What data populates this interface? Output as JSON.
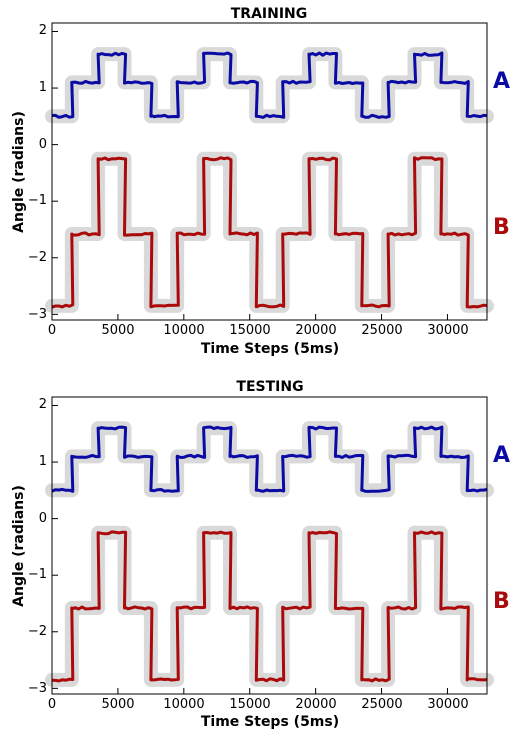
{
  "chart_data": [
    {
      "type": "line",
      "title": "TRAINING",
      "xlabel": "Time Steps (5ms)",
      "ylabel": "Angle (radians)",
      "xlim": [
        0,
        33000
      ],
      "ylim": [
        -3.1,
        2.15
      ],
      "x_ticks": [
        "0",
        "5000",
        "10000",
        "15000",
        "20000",
        "25000",
        "30000"
      ],
      "y_ticks": [
        "2",
        "1",
        "0",
        "−1",
        "−2",
        "−3"
      ],
      "labels": [
        "A",
        "B"
      ],
      "colors": {
        "A": "#0a0aa5",
        "B": "#aa0a0a",
        "target": "#d9d9d9"
      },
      "series": [
        {
          "name": "A",
          "x": [
            0,
            1500,
            1500,
            3500,
            3500,
            5500,
            5500,
            7500,
            7500,
            9500,
            9500,
            11500,
            11500,
            13500,
            13500,
            15500,
            15500,
            17500,
            17500,
            19500,
            19500,
            21500,
            21500,
            23500,
            23500,
            25500,
            25500,
            27500,
            27500,
            29500,
            29500,
            31500,
            31500,
            33000
          ],
          "y": [
            0.5,
            0.5,
            1.1,
            1.1,
            1.6,
            1.6,
            1.1,
            1.1,
            0.5,
            0.5,
            1.1,
            1.1,
            1.6,
            1.6,
            1.1,
            1.1,
            0.5,
            0.5,
            1.1,
            1.1,
            1.6,
            1.6,
            1.1,
            1.1,
            0.5,
            0.5,
            1.1,
            1.1,
            1.6,
            1.6,
            1.1,
            1.1,
            0.5,
            0.5
          ]
        },
        {
          "name": "B",
          "x": [
            0,
            1500,
            1500,
            3500,
            3500,
            5500,
            5500,
            7500,
            7500,
            9500,
            9500,
            11500,
            11500,
            13500,
            13500,
            15500,
            15500,
            17500,
            17500,
            19500,
            19500,
            21500,
            21500,
            23500,
            23500,
            25500,
            25500,
            27500,
            27500,
            29500,
            29500,
            31500,
            31500,
            33000
          ],
          "y": [
            -2.85,
            -2.85,
            -1.58,
            -1.58,
            -0.25,
            -0.25,
            -1.58,
            -1.58,
            -2.85,
            -2.85,
            -1.58,
            -1.58,
            -0.25,
            -0.25,
            -1.58,
            -1.58,
            -2.85,
            -2.85,
            -1.58,
            -1.58,
            -0.25,
            -0.25,
            -1.58,
            -1.58,
            -2.85,
            -2.85,
            -1.58,
            -1.58,
            -0.25,
            -0.25,
            -1.58,
            -1.58,
            -2.85,
            -2.85
          ]
        }
      ]
    },
    {
      "type": "line",
      "title": "TESTING",
      "xlabel": "Time Steps (5ms)",
      "ylabel": "Angle (radians)",
      "xlim": [
        0,
        33000
      ],
      "ylim": [
        -3.1,
        2.15
      ],
      "x_ticks": [
        "0",
        "5000",
        "10000",
        "15000",
        "20000",
        "25000",
        "30000"
      ],
      "y_ticks": [
        "2",
        "1",
        "0",
        "−1",
        "−2",
        "−3"
      ],
      "labels": [
        "A",
        "B"
      ],
      "colors": {
        "A": "#0a0aa5",
        "B": "#aa0a0a",
        "target": "#d9d9d9"
      },
      "series": [
        {
          "name": "A",
          "x": [
            0,
            1500,
            1500,
            3500,
            3500,
            5500,
            5500,
            7500,
            7500,
            9500,
            9500,
            11500,
            11500,
            13500,
            13500,
            15500,
            15500,
            17500,
            17500,
            19500,
            19500,
            21500,
            21500,
            23500,
            23500,
            25500,
            25500,
            27500,
            27500,
            29500,
            29500,
            31500,
            31500,
            33000
          ],
          "y": [
            0.5,
            0.5,
            1.1,
            1.1,
            1.6,
            1.6,
            1.1,
            1.1,
            0.5,
            0.5,
            1.1,
            1.1,
            1.6,
            1.6,
            1.1,
            1.1,
            0.5,
            0.5,
            1.1,
            1.1,
            1.6,
            1.6,
            1.1,
            1.1,
            0.5,
            0.5,
            1.1,
            1.1,
            1.6,
            1.6,
            1.1,
            1.1,
            0.5,
            0.5
          ]
        },
        {
          "name": "B",
          "x": [
            0,
            1500,
            1500,
            3500,
            3500,
            5500,
            5500,
            7500,
            7500,
            9500,
            9500,
            11500,
            11500,
            13500,
            13500,
            15500,
            15500,
            17500,
            17500,
            19500,
            19500,
            21500,
            21500,
            23500,
            23500,
            25500,
            25500,
            27500,
            27500,
            29500,
            29500,
            31500,
            31500,
            33000
          ],
          "y": [
            -2.85,
            -2.85,
            -1.58,
            -1.58,
            -0.25,
            -0.25,
            -1.58,
            -1.58,
            -2.85,
            -2.85,
            -1.58,
            -1.58,
            -0.25,
            -0.25,
            -1.58,
            -1.58,
            -2.85,
            -2.85,
            -1.58,
            -1.58,
            -0.25,
            -0.25,
            -1.58,
            -1.58,
            -2.85,
            -2.85,
            -1.58,
            -1.58,
            -0.25,
            -0.25,
            -1.58,
            -1.58,
            -2.85,
            -2.85
          ]
        }
      ]
    }
  ]
}
